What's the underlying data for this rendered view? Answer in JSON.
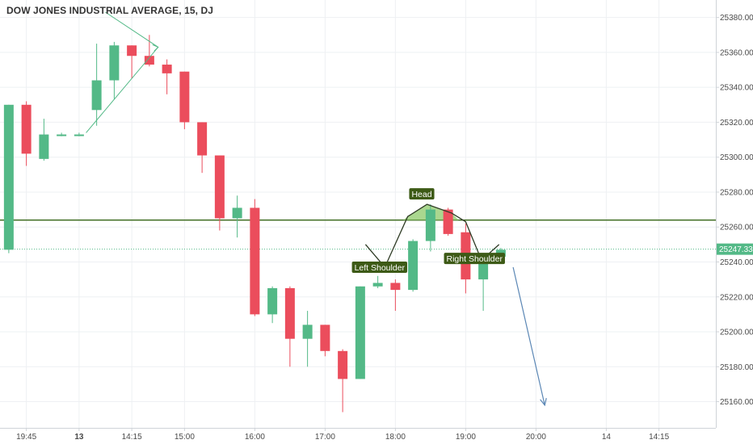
{
  "header": {
    "title": "DOW JONES INDUSTRIAL AVERAGE, 15, DJ"
  },
  "colors": {
    "up": "#53b987",
    "down": "#eb4d5c",
    "grid": "#eef0f3",
    "neckline": "#3d6b1f",
    "pattern_fill": "#8ec96a",
    "last_line": "#53b987",
    "badge_bg": "#53b987",
    "annot_bg": "#3d5a16",
    "triangle": "#53b987",
    "arrow": "#5b87b5",
    "axis_border": "#cfd3d8"
  },
  "chart_data": {
    "type": "candlestick",
    "title": "DOW JONES INDUSTRIAL AVERAGE, 15, DJ",
    "interval": "15",
    "ylim": [
      25145,
      25390
    ],
    "y_ticks": [
      25160,
      25180,
      25200,
      25220,
      25240,
      25260,
      25280,
      25300,
      25320,
      25340,
      25360,
      25380
    ],
    "y_tick_labels": [
      "25160.00",
      "25180.00",
      "25200.00",
      "25220.00",
      "25240.00",
      "25260.00",
      "25280.00",
      "25300.00",
      "25320.00",
      "25340.00",
      "25360.00",
      "25380.00"
    ],
    "x_ticks": [
      {
        "index": 1.5,
        "label": "19:45",
        "bold": false
      },
      {
        "index": 4.5,
        "label": "13",
        "bold": true
      },
      {
        "index": 7.5,
        "label": "14:15",
        "bold": false
      },
      {
        "index": 10.5,
        "label": "15:00",
        "bold": false
      },
      {
        "index": 14.5,
        "label": "16:00",
        "bold": false
      },
      {
        "index": 18.5,
        "label": "17:00",
        "bold": false
      },
      {
        "index": 22.5,
        "label": "18:00",
        "bold": false
      },
      {
        "index": 26.5,
        "label": "19:00",
        "bold": false
      },
      {
        "index": 30.5,
        "label": "20:00",
        "bold": false
      },
      {
        "index": 34.5,
        "label": "14",
        "bold": false
      },
      {
        "index": 37.5,
        "label": "14:15",
        "bold": false
      }
    ],
    "candles": [
      {
        "o": 25247,
        "h": 25330,
        "l": 25245,
        "c": 25330
      },
      {
        "o": 25330,
        "h": 25332,
        "l": 25295,
        "c": 25302
      },
      {
        "o": 25299,
        "h": 25322,
        "l": 25298,
        "c": 25313
      },
      {
        "o": 25313,
        "h": 25314,
        "l": 25312,
        "c": 25313
      },
      {
        "o": 25313,
        "h": 25314,
        "l": 25312,
        "c": 25313
      },
      {
        "o": 25327,
        "h": 25365,
        "l": 25318,
        "c": 25344
      },
      {
        "o": 25344,
        "h": 25366,
        "l": 25333,
        "c": 25364
      },
      {
        "o": 25364,
        "h": 25364,
        "l": 25345,
        "c": 25358
      },
      {
        "o": 25358,
        "h": 25370,
        "l": 25352,
        "c": 25353
      },
      {
        "o": 25353,
        "h": 25356,
        "l": 25336,
        "c": 25348
      },
      {
        "o": 25349,
        "h": 25349,
        "l": 25316,
        "c": 25320
      },
      {
        "o": 25320,
        "h": 25320,
        "l": 25291,
        "c": 25301
      },
      {
        "o": 25301,
        "h": 25301,
        "l": 25258,
        "c": 25265
      },
      {
        "o": 25265,
        "h": 25278,
        "l": 25254,
        "c": 25271
      },
      {
        "o": 25271,
        "h": 25276,
        "l": 25209,
        "c": 25210
      },
      {
        "o": 25210,
        "h": 25226,
        "l": 25205,
        "c": 25225
      },
      {
        "o": 25225,
        "h": 25226,
        "l": 25180,
        "c": 25196
      },
      {
        "o": 25196,
        "h": 25212,
        "l": 25180,
        "c": 25204
      },
      {
        "o": 25204,
        "h": 25204,
        "l": 25186,
        "c": 25189
      },
      {
        "o": 25189,
        "h": 25190,
        "l": 25154,
        "c": 25173
      },
      {
        "o": 25173,
        "h": 25226,
        "l": 25173,
        "c": 25226
      },
      {
        "o": 25226,
        "h": 25232,
        "l": 25225,
        "c": 25228
      },
      {
        "o": 25228,
        "h": 25230,
        "l": 25212,
        "c": 25224
      },
      {
        "o": 25224,
        "h": 25253,
        "l": 25223,
        "c": 25252
      },
      {
        "o": 25252,
        "h": 25273,
        "l": 25246,
        "c": 25270
      },
      {
        "o": 25270,
        "h": 25271,
        "l": 25255,
        "c": 25256
      },
      {
        "o": 25257,
        "h": 25262,
        "l": 25222,
        "c": 25230
      },
      {
        "o": 25230,
        "h": 25245,
        "l": 25212,
        "c": 25243
      },
      {
        "o": 25243,
        "h": 25248,
        "l": 25241,
        "c": 25247
      }
    ],
    "last_price": 25247.33,
    "last_price_label": "25247.33",
    "neckline_value": 25264,
    "pattern_lines": [
      {
        "points": [
          [
            20.8,
            25250
          ],
          [
            21.9,
            25237
          ],
          [
            23.2,
            25266
          ],
          [
            24.3,
            25273
          ],
          [
            25.7,
            25268
          ],
          [
            26.5,
            25263
          ],
          [
            27.4,
            25241
          ],
          [
            28.4,
            25250
          ]
        ]
      }
    ],
    "annotations": [
      {
        "text": "Left Shoulder",
        "x": 21.6,
        "y": 25237
      },
      {
        "text": "Head",
        "x": 24.0,
        "y": 25279
      },
      {
        "text": "Right Shoulder",
        "x": 27.0,
        "y": 25242
      }
    ],
    "triangle": {
      "points": [
        [
          6.0,
          25383
        ],
        [
          9.0,
          25363
        ],
        [
          4.9,
          25314
        ]
      ]
    },
    "projection_arrow": {
      "from": [
        29.2,
        25237
      ],
      "to": [
        31.0,
        25158
      ]
    }
  }
}
